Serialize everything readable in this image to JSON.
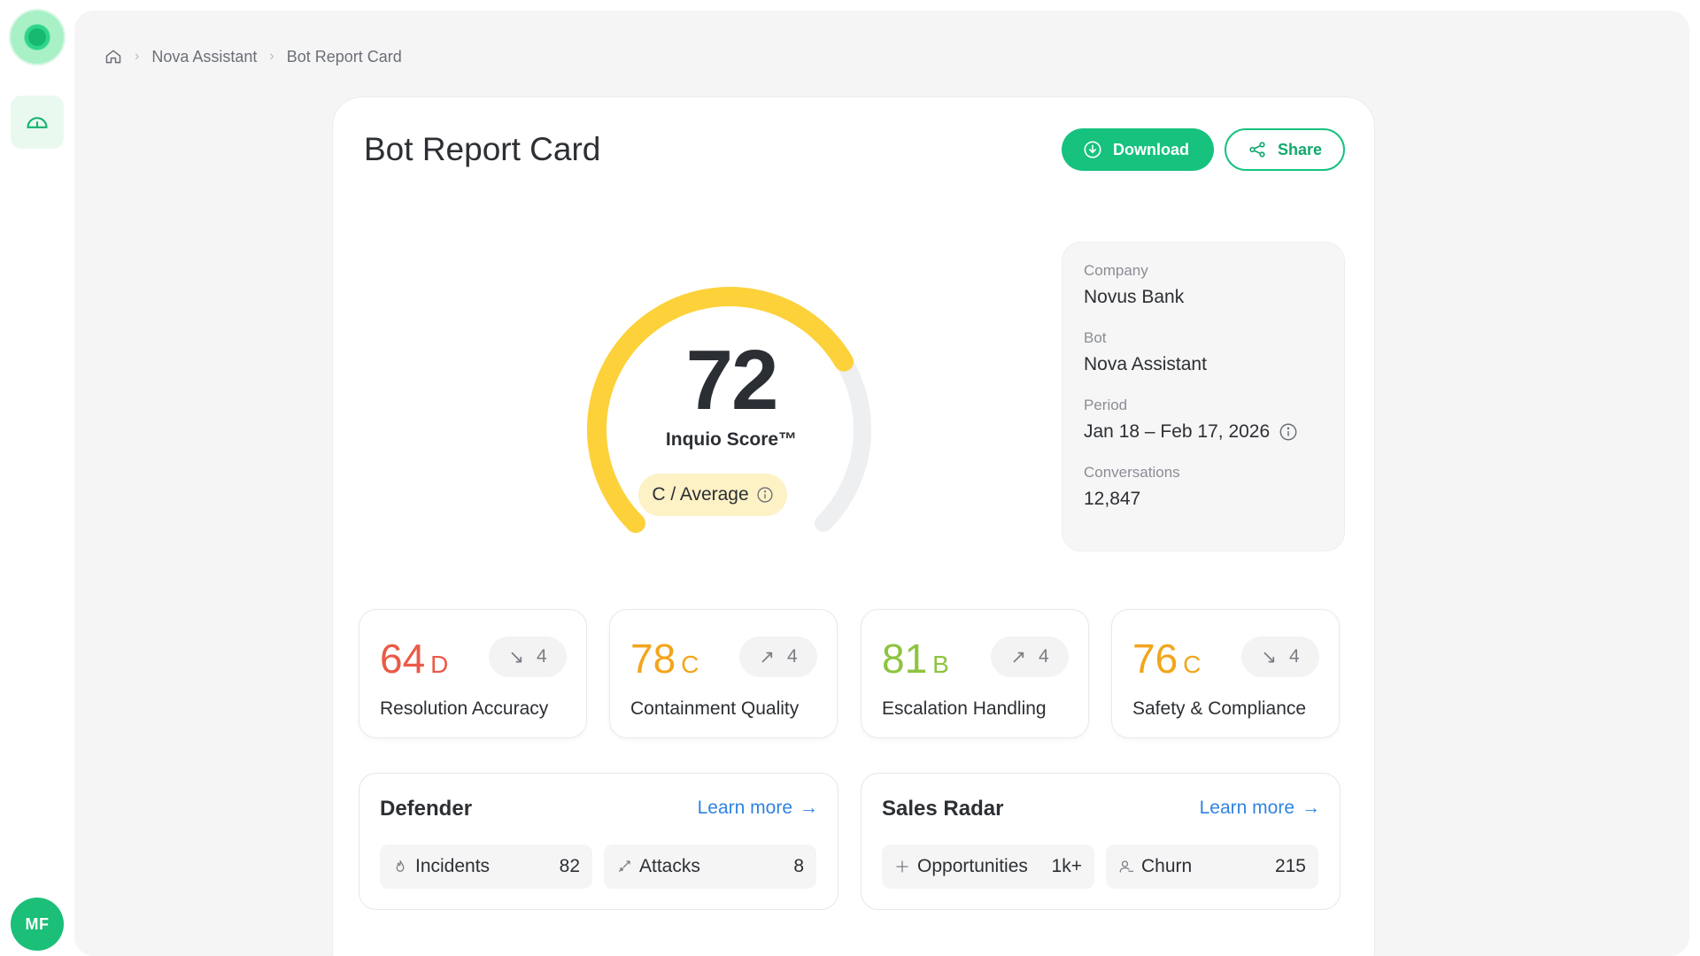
{
  "user": {
    "initials": "MF"
  },
  "breadcrumb": {
    "items": [
      "Nova Assistant",
      "Bot Report Card"
    ]
  },
  "header": {
    "title": "Bot Report Card",
    "download_label": "Download",
    "share_label": "Share"
  },
  "gauge": {
    "score": "72",
    "score_value": 72,
    "label": "Inquio Score™",
    "grade": "C / Average",
    "color": "#fdd13a"
  },
  "meta": {
    "company_label": "Company",
    "company": "Novus Bank",
    "bot_label": "Bot",
    "bot": "Nova Assistant",
    "period_label": "Period",
    "period": "Jan 18 – Feb 17, 2026",
    "conversations_label": "Conversations",
    "conversations": "12,847"
  },
  "metrics": [
    {
      "score": "64",
      "grade": "D",
      "delta": "4",
      "direction": "down",
      "name": "Resolution Accuracy",
      "color": "#ea5a47"
    },
    {
      "score": "78",
      "grade": "C",
      "delta": "4",
      "direction": "up",
      "name": "Containment Quality",
      "color": "#f2a51c"
    },
    {
      "score": "81",
      "grade": "B",
      "delta": "4",
      "direction": "up",
      "name": "Escalation Handling",
      "color": "#8dc43f"
    },
    {
      "score": "76",
      "grade": "C",
      "delta": "4",
      "direction": "down",
      "name": "Safety & Compliance",
      "color": "#f2a51c"
    }
  ],
  "defender": {
    "title": "Defender",
    "learn_more": "Learn more",
    "stats": [
      {
        "label": "Incidents",
        "value": "82"
      },
      {
        "label": "Attacks",
        "value": "8"
      }
    ]
  },
  "sales_radar": {
    "title": "Sales Radar",
    "learn_more": "Learn more",
    "stats": [
      {
        "label": "Opportunities",
        "value": "1k+"
      },
      {
        "label": "Churn",
        "value": "215"
      }
    ]
  },
  "colors": {
    "brand": "#16c27e",
    "link": "#2f84e0",
    "gauge_track": "#eeeff0"
  }
}
